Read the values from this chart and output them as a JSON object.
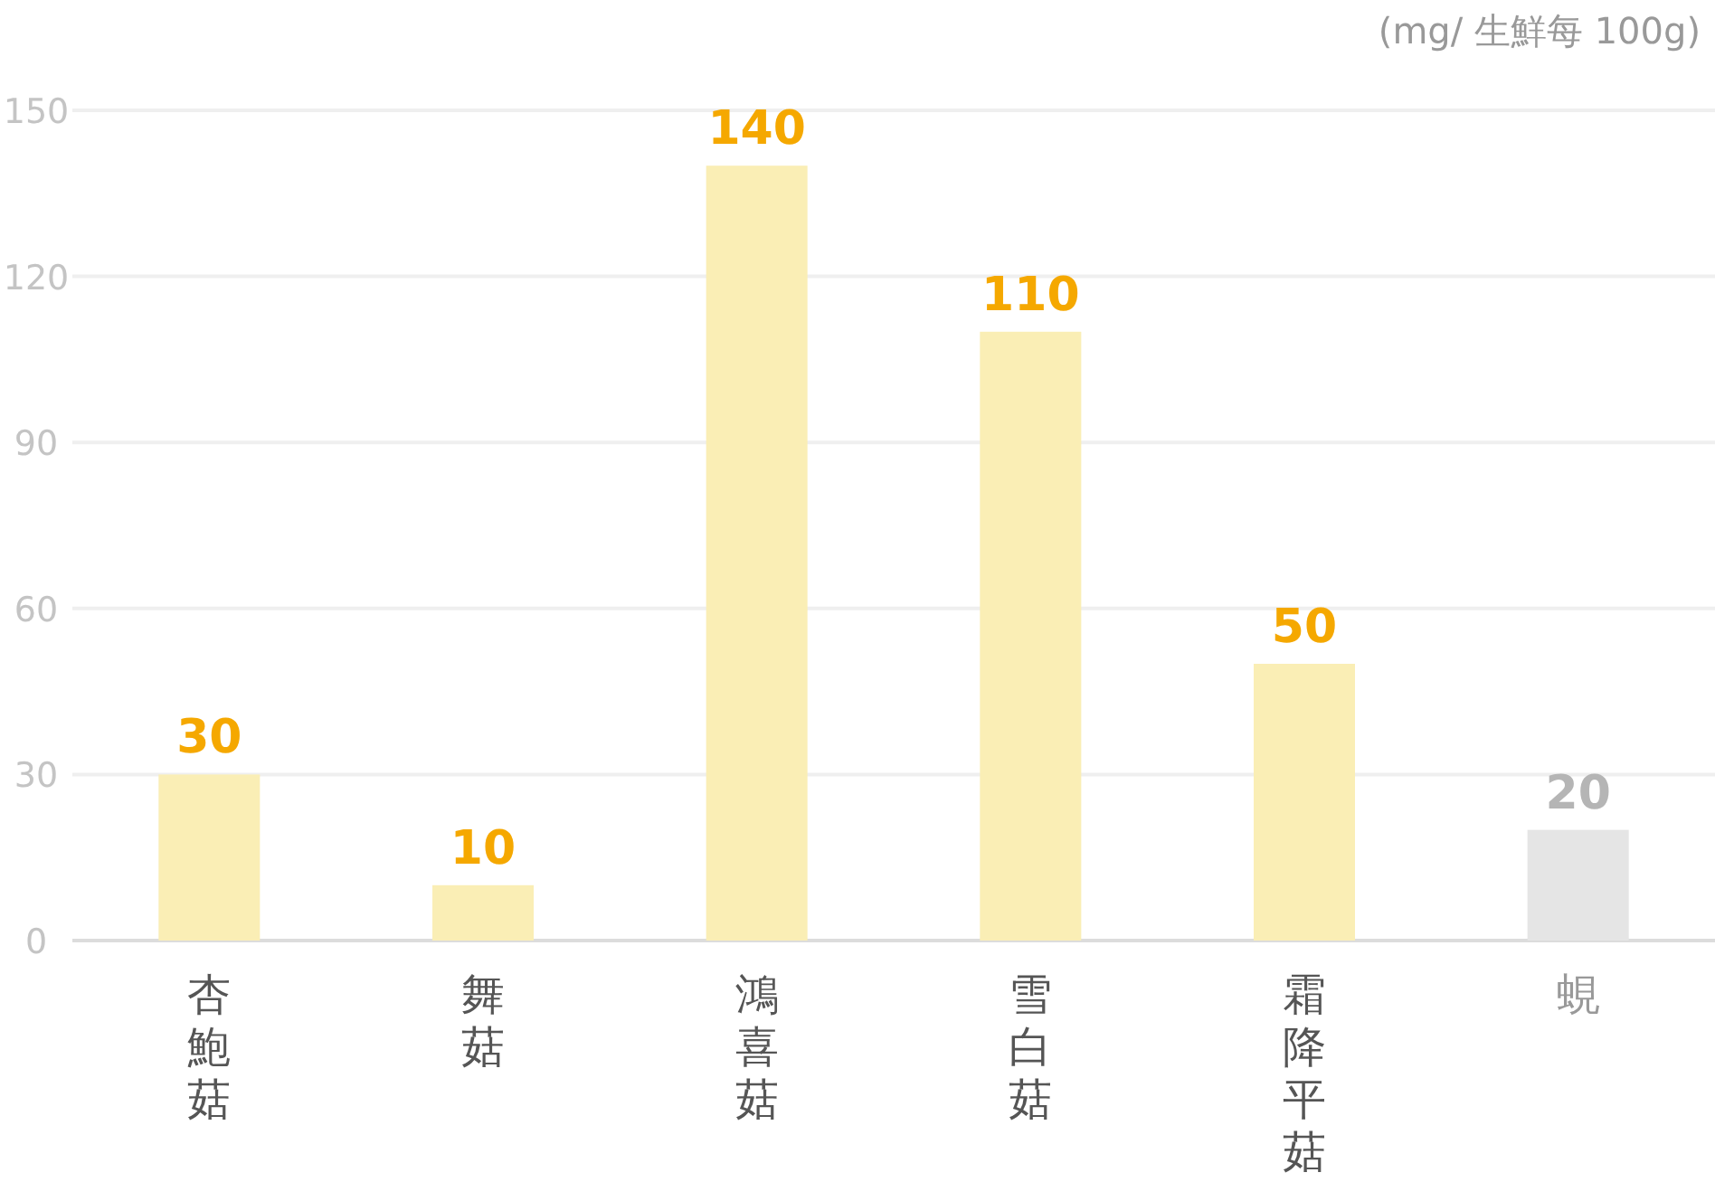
{
  "chart_data": {
    "type": "bar",
    "annotations": [
      "(mg/ 生鮮每 100g)"
    ],
    "categories": [
      "杏鮑菇",
      "舞菇",
      "鴻喜菇",
      "雪白菇",
      "霜降平菇",
      "蜆"
    ],
    "values": [
      30,
      10,
      140,
      110,
      50,
      20
    ],
    "colors": [
      "#faeeb5",
      "#faeeb5",
      "#faeeb5",
      "#faeeb5",
      "#faeeb5",
      "#e5e5e5"
    ],
    "ylim": [
      0,
      150
    ],
    "yticks": [
      0,
      30,
      60,
      90,
      120,
      150
    ],
    "grid": "y",
    "data_labels": true
  }
}
